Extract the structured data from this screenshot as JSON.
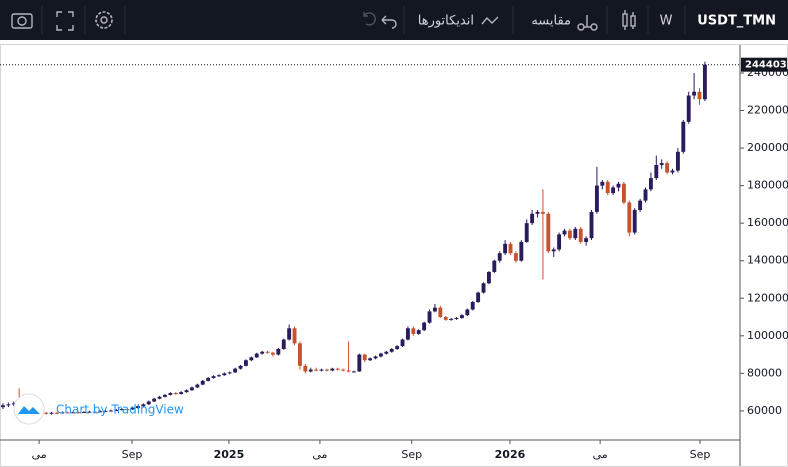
{
  "toolbar": {
    "symbol": "USDT_TMN",
    "interval": "W",
    "compare": "مقایسه",
    "indicators": "اندیکاتورها"
  },
  "watermark": "Chart by TradingView",
  "chart_data": {
    "type": "candlestick",
    "up_color": "#2a1b5c",
    "down_color": "#c4532f",
    "ylim": [
      44500,
      254900
    ],
    "yticks": [
      60000,
      80000,
      100000,
      120000,
      140000,
      160000,
      180000,
      200000,
      220000,
      240000
    ],
    "xlim": [
      -0.55,
      136.5
    ],
    "xticks": [
      {
        "value": 6.7,
        "label": "می"
      },
      {
        "value": 23.9,
        "label": "Sep"
      },
      {
        "value": 41.85,
        "label": "2025"
      },
      {
        "value": 58.7,
        "label": "می"
      },
      {
        "value": 75.7,
        "label": "Sep"
      },
      {
        "value": 93.9,
        "label": "2026"
      },
      {
        "value": 110.6,
        "label": "می"
      },
      {
        "value": 129.1,
        "label": "Sep"
      }
    ],
    "ohlc": [
      [
        62000,
        64000,
        61000,
        63000
      ],
      [
        63000,
        64500,
        62000,
        63500
      ],
      [
        63500,
        65000,
        62500,
        64000
      ],
      [
        64000,
        72000,
        62000,
        62500
      ],
      [
        62500,
        63000,
        60500,
        61000
      ],
      [
        61000,
        61500,
        59500,
        60000
      ],
      [
        60000,
        60500,
        59000,
        59500
      ],
      [
        59500,
        60000,
        58000,
        59000
      ],
      [
        59000,
        59500,
        58000,
        58500
      ],
      [
        58500,
        59500,
        58000,
        59000
      ],
      [
        59000,
        59500,
        58300,
        58800
      ],
      [
        58800,
        59700,
        58500,
        59200
      ],
      [
        59200,
        59600,
        58600,
        59000
      ],
      [
        59000,
        59800,
        58700,
        59300
      ],
      [
        59300,
        59700,
        58700,
        59100
      ],
      [
        59100,
        59900,
        58900,
        59400
      ],
      [
        59400,
        60100,
        59100,
        59600
      ],
      [
        59600,
        60000,
        59000,
        59300
      ],
      [
        59300,
        60300,
        59100,
        59800
      ],
      [
        59800,
        60500,
        59500,
        60000
      ],
      [
        60000,
        60700,
        59800,
        60200
      ],
      [
        60200,
        61000,
        60000,
        60500
      ],
      [
        60500,
        61500,
        60200,
        61000
      ],
      [
        61000,
        61400,
        60400,
        60800
      ],
      [
        60800,
        62000,
        60500,
        61500
      ],
      [
        61500,
        63000,
        61200,
        62500
      ],
      [
        62500,
        64000,
        62200,
        63500
      ],
      [
        63500,
        65500,
        63200,
        65000
      ],
      [
        65000,
        67000,
        64700,
        66500
      ],
      [
        66500,
        68000,
        66200,
        67500
      ],
      [
        67500,
        69000,
        67200,
        68500
      ],
      [
        68500,
        70000,
        68200,
        69500
      ],
      [
        69500,
        70000,
        68600,
        69000
      ],
      [
        69000,
        70500,
        68700,
        70000
      ],
      [
        70000,
        71500,
        69700,
        71000
      ],
      [
        71000,
        73000,
        70700,
        72500
      ],
      [
        72500,
        74500,
        72200,
        74000
      ],
      [
        74000,
        76500,
        73700,
        76000
      ],
      [
        76000,
        78000,
        75700,
        77500
      ],
      [
        77500,
        79000,
        77200,
        78500
      ],
      [
        78500,
        79500,
        78000,
        79000
      ],
      [
        79000,
        80500,
        78700,
        80000
      ],
      [
        80000,
        81000,
        79500,
        80500
      ],
      [
        80500,
        83000,
        80200,
        82500
      ],
      [
        82500,
        84500,
        82000,
        84000
      ],
      [
        84000,
        87500,
        83700,
        87000
      ],
      [
        87000,
        89000,
        86500,
        88500
      ],
      [
        88500,
        91000,
        88200,
        90500
      ],
      [
        90500,
        92000,
        90000,
        91500
      ],
      [
        91500,
        92000,
        90500,
        91000
      ],
      [
        91000,
        91500,
        89000,
        90000
      ],
      [
        90000,
        93500,
        89500,
        93000
      ],
      [
        93000,
        98500,
        92500,
        98000
      ],
      [
        98000,
        106000,
        97500,
        104000
      ],
      [
        104000,
        105000,
        95000,
        96000
      ],
      [
        96000,
        97000,
        82000,
        84000
      ],
      [
        84000,
        85000,
        80000,
        81000
      ],
      [
        81000,
        83000,
        80500,
        82000
      ],
      [
        82000,
        83000,
        81000,
        81500
      ],
      [
        81500,
        82500,
        81000,
        82000
      ],
      [
        82000,
        82500,
        81000,
        81500
      ],
      [
        81500,
        83000,
        81200,
        82500
      ],
      [
        82500,
        83000,
        81500,
        82000
      ],
      [
        82000,
        82500,
        81000,
        81500
      ],
      [
        81500,
        97000,
        80500,
        81000
      ],
      [
        81000,
        81500,
        80500,
        81000
      ],
      [
        81000,
        90500,
        80800,
        90000
      ],
      [
        90000,
        90500,
        86000,
        87000
      ],
      [
        87000,
        88500,
        86500,
        88000
      ],
      [
        88000,
        89500,
        87500,
        89000
      ],
      [
        89000,
        91000,
        88500,
        90500
      ],
      [
        90500,
        92000,
        90000,
        91500
      ],
      [
        91500,
        93500,
        91000,
        93000
      ],
      [
        93000,
        95000,
        92500,
        94500
      ],
      [
        94500,
        98500,
        94000,
        98000
      ],
      [
        98000,
        105000,
        97500,
        104000
      ],
      [
        104000,
        105000,
        100000,
        101000
      ],
      [
        101000,
        103500,
        100500,
        103000
      ],
      [
        103000,
        107500,
        102500,
        107000
      ],
      [
        107000,
        114000,
        106500,
        113000
      ],
      [
        113000,
        117000,
        112500,
        115000
      ],
      [
        115000,
        116000,
        109500,
        110000
      ],
      [
        110000,
        110500,
        108000,
        108500
      ],
      [
        108500,
        109500,
        108000,
        109000
      ],
      [
        109000,
        110000,
        108500,
        109500
      ],
      [
        109500,
        111500,
        109000,
        111000
      ],
      [
        111000,
        114500,
        110500,
        114000
      ],
      [
        114000,
        118500,
        113500,
        118000
      ],
      [
        118000,
        123500,
        117500,
        123000
      ],
      [
        123000,
        128500,
        122500,
        128000
      ],
      [
        128000,
        134500,
        127500,
        134000
      ],
      [
        134000,
        140500,
        133500,
        140000
      ],
      [
        140000,
        145000,
        139000,
        144000
      ],
      [
        144000,
        151000,
        143000,
        149000
      ],
      [
        149000,
        150000,
        143000,
        144000
      ],
      [
        144000,
        145000,
        139000,
        140000
      ],
      [
        140000,
        151000,
        139500,
        150000
      ],
      [
        150000,
        162000,
        149500,
        160000
      ],
      [
        160000,
        167000,
        159000,
        165000
      ],
      [
        165000,
        167000,
        163000,
        166000
      ],
      [
        166000,
        178000,
        130000,
        165000
      ],
      [
        165000,
        166000,
        144000,
        145000
      ],
      [
        145000,
        147000,
        142000,
        146000
      ],
      [
        146000,
        155000,
        145000,
        154000
      ],
      [
        154000,
        157000,
        153000,
        156000
      ],
      [
        156000,
        157000,
        151000,
        152000
      ],
      [
        152000,
        158000,
        151000,
        157000
      ],
      [
        157000,
        158000,
        149000,
        150000
      ],
      [
        150000,
        153000,
        148000,
        152000
      ],
      [
        152000,
        167000,
        151000,
        166000
      ],
      [
        166000,
        190000,
        165000,
        180000
      ],
      [
        180000,
        183000,
        178000,
        182000
      ],
      [
        182000,
        183000,
        175000,
        176000
      ],
      [
        176000,
        180000,
        175000,
        179000
      ],
      [
        179000,
        182000,
        177000,
        181000
      ],
      [
        181000,
        182000,
        170000,
        171000
      ],
      [
        171000,
        172000,
        153000,
        155000
      ],
      [
        155000,
        168000,
        154000,
        167000
      ],
      [
        167000,
        173000,
        166000,
        172000
      ],
      [
        172000,
        179000,
        171000,
        178000
      ],
      [
        178000,
        187000,
        177000,
        184000
      ],
      [
        184000,
        196000,
        183000,
        191000
      ],
      [
        191000,
        194000,
        189000,
        192000
      ],
      [
        192000,
        193000,
        186000,
        187000
      ],
      [
        187000,
        189000,
        186000,
        188000
      ],
      [
        188000,
        200000,
        187000,
        198000
      ],
      [
        198000,
        215000,
        197000,
        214000
      ],
      [
        214000,
        230000,
        213000,
        228000
      ],
      [
        228000,
        240000,
        226000,
        230000
      ],
      [
        230000,
        232000,
        223000,
        226000
      ],
      [
        226000,
        246000,
        225000,
        244403
      ]
    ]
  }
}
